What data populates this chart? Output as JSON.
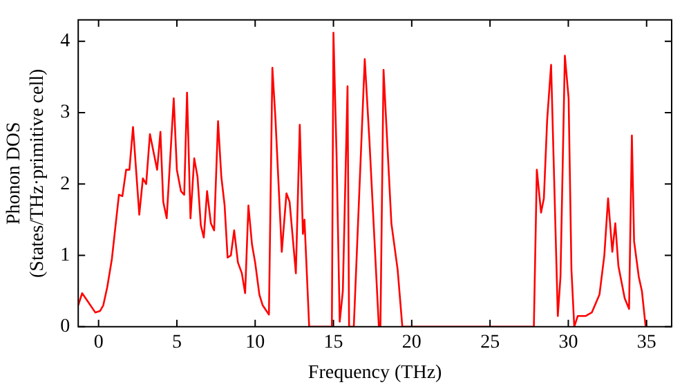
{
  "chart_data": {
    "type": "line",
    "xlabel": "Frequency (THz)",
    "ylabel": "Phonon DOS\n(States/THz·primitive cell)",
    "xlim": [
      -1.3,
      36.6
    ],
    "ylim": [
      0,
      4.3
    ],
    "xticks": [
      0,
      5,
      10,
      15,
      20,
      25,
      30,
      35
    ],
    "yticks": [
      0,
      1,
      2,
      3,
      4
    ],
    "grid": false,
    "legend": false,
    "marker": "none",
    "line_style": "solid",
    "series": [
      {
        "color": "#ff0000",
        "x": [
          -1.3,
          -1.05,
          -0.67,
          -0.21,
          0.09,
          0.3,
          0.55,
          0.85,
          1.3,
          1.52,
          1.76,
          1.97,
          2.2,
          2.6,
          2.83,
          3.04,
          3.28,
          3.74,
          3.95,
          4.13,
          4.35,
          4.8,
          5.0,
          5.26,
          5.47,
          5.65,
          5.87,
          6.11,
          6.32,
          6.53,
          6.72,
          6.93,
          7.17,
          7.38,
          7.63,
          7.84,
          8.05,
          8.24,
          8.45,
          8.66,
          8.9,
          9.15,
          9.36,
          9.57,
          9.8,
          10.0,
          10.27,
          10.48,
          10.88,
          11.1,
          11.3,
          11.7,
          12.0,
          12.2,
          12.4,
          12.6,
          12.85,
          13.05,
          13.15,
          13.45,
          14.9,
          15.0,
          15.2,
          15.4,
          15.6,
          15.9,
          16.0,
          16.3,
          17.0,
          17.3,
          17.9,
          18.0,
          18.2,
          18.7,
          19.1,
          19.4,
          27.8,
          27.99,
          28.26,
          28.44,
          28.65,
          28.9,
          29.33,
          29.5,
          29.78,
          30.02,
          30.2,
          30.38,
          30.6,
          31.1,
          31.5,
          31.99,
          32.3,
          32.54,
          32.81,
          33.0,
          33.2,
          33.6,
          33.88,
          34.06,
          34.2,
          34.5,
          34.7,
          34.94
        ],
        "values": [
          0.3,
          0.47,
          0.35,
          0.2,
          0.22,
          0.3,
          0.55,
          0.95,
          1.85,
          1.83,
          2.2,
          2.2,
          2.8,
          1.57,
          2.08,
          2.0,
          2.7,
          2.2,
          2.73,
          1.75,
          1.52,
          3.2,
          2.2,
          1.9,
          1.85,
          3.28,
          1.52,
          2.36,
          2.1,
          1.42,
          1.25,
          1.9,
          1.45,
          1.35,
          2.88,
          2.1,
          1.7,
          0.97,
          1.0,
          1.35,
          0.9,
          0.75,
          0.47,
          1.7,
          1.15,
          0.9,
          0.45,
          0.3,
          0.17,
          3.63,
          2.9,
          1.05,
          1.87,
          1.75,
          1.25,
          0.75,
          2.83,
          1.3,
          1.5,
          0,
          0,
          4.12,
          2.4,
          0.07,
          0.5,
          3.37,
          0,
          0,
          3.75,
          2.6,
          0,
          0,
          3.6,
          1.45,
          0.8,
          0,
          0,
          2.2,
          1.6,
          1.8,
          2.9,
          3.67,
          0.15,
          0.7,
          3.8,
          3.2,
          0.8,
          0,
          0.15,
          0.15,
          0.2,
          0.45,
          1.0,
          1.8,
          1.05,
          1.45,
          0.85,
          0.4,
          0.25,
          2.68,
          1.2,
          0.7,
          0.5,
          0
        ]
      }
    ]
  }
}
